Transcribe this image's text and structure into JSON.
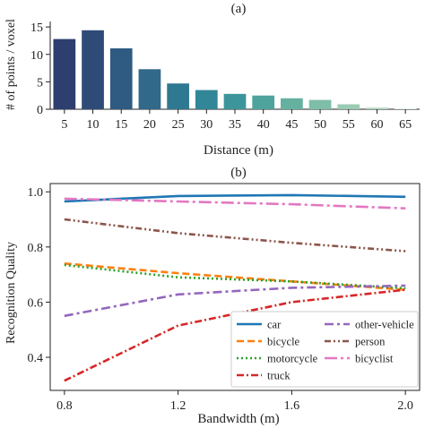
{
  "chart_data": [
    {
      "type": "bar",
      "title": "(a)",
      "xlabel": "Distance (m)",
      "ylabel": "# of points / voxel",
      "categories": [
        "5",
        "10",
        "15",
        "20",
        "25",
        "30",
        "35",
        "40",
        "45",
        "50",
        "55",
        "60",
        "65"
      ],
      "values": [
        12.8,
        14.4,
        11.1,
        7.3,
        4.7,
        3.5,
        2.8,
        2.5,
        2.0,
        1.7,
        0.9,
        0.3,
        0.1
      ],
      "ylim": [
        0,
        16
      ],
      "yticks": [
        0,
        5,
        10,
        15
      ],
      "colors": [
        "#2d3f6e",
        "#2e4b78",
        "#2f5a81",
        "#30698a",
        "#2f7891",
        "#318697",
        "#3c959a",
        "#4fa39d",
        "#65b1a0",
        "#7ebea7",
        "#9acbb3",
        "#b6d8c4",
        "#d2e6d6"
      ],
      "grid": false,
      "legend": "none"
    },
    {
      "type": "line",
      "title": "(b)",
      "xlabel": "Bandwidth (m)",
      "ylabel": "Recognition Quality",
      "x": [
        0.8,
        1.2,
        1.6,
        2.0
      ],
      "xticks": [
        "0.8",
        "1.2",
        "1.6",
        "2.0"
      ],
      "ylim": [
        0.28,
        1.03
      ],
      "yticks": [
        "0.4",
        "0.6",
        "0.8",
        "1.0"
      ],
      "grid": false,
      "legend": "lower-right",
      "series": [
        {
          "name": "car",
          "values": [
            0.965,
            0.985,
            0.988,
            0.982
          ],
          "color": "#1f77b4",
          "dash": "solid"
        },
        {
          "name": "bicycle",
          "values": [
            0.74,
            0.705,
            0.675,
            0.645
          ],
          "color": "#ff7f0e",
          "dash": "dashed"
        },
        {
          "name": "motorcycle",
          "values": [
            0.735,
            0.69,
            0.675,
            0.65
          ],
          "color": "#2ca02c",
          "dash": "dotted"
        },
        {
          "name": "truck",
          "values": [
            0.315,
            0.515,
            0.6,
            0.645
          ],
          "color": "#d62728",
          "dash": "dashdot"
        },
        {
          "name": "other-vehicle",
          "values": [
            0.55,
            0.628,
            0.652,
            0.66
          ],
          "color": "#9467bd",
          "dash": "longdashdot"
        },
        {
          "name": "person",
          "values": [
            0.9,
            0.85,
            0.815,
            0.785
          ],
          "color": "#8c564b",
          "dash": "dashdotdot"
        },
        {
          "name": "bicyclist",
          "values": [
            0.975,
            0.965,
            0.955,
            0.94
          ],
          "color": "#e377c2",
          "dash": "longdash"
        }
      ]
    }
  ]
}
